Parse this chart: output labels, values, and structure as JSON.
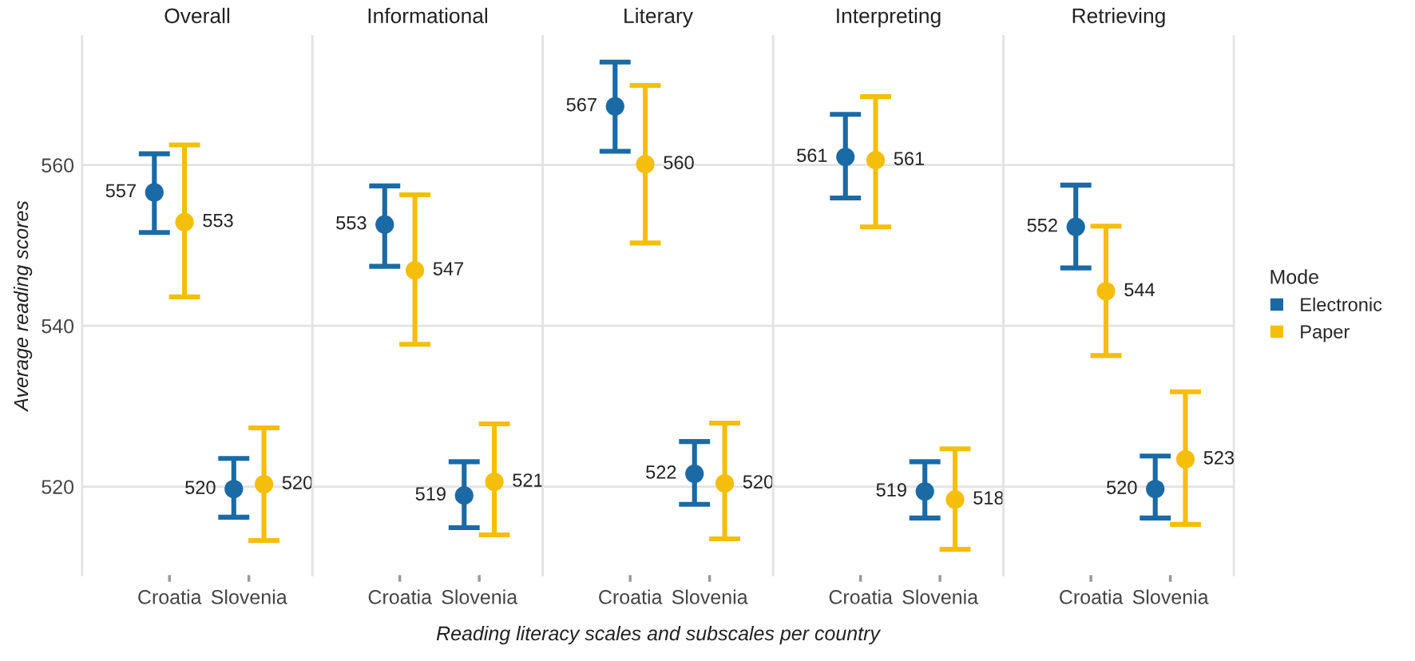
{
  "chart_data": [
    {
      "type": "scatter",
      "title": "Overall",
      "ylabel": "Average reading scores",
      "categories": [
        "Croatia",
        "Slovenia"
      ],
      "ylim": [
        509,
        576
      ],
      "yticks": [
        520,
        540,
        560
      ],
      "grid": "y",
      "marker": "circle",
      "series": [
        {
          "color": "#1a6aa5",
          "values": [
            556.6,
            519.7
          ],
          "errors": [
            [
              551.6,
              561.4
            ],
            [
              516.2,
              523.5
            ]
          ],
          "value_labels": [
            "557",
            "520"
          ]
        },
        {
          "color": "#f5be0b",
          "values": [
            552.9,
            520.3
          ],
          "errors": [
            [
              543.6,
              562.5
            ],
            [
              513.3,
              527.3
            ]
          ],
          "value_labels": [
            "553",
            "520"
          ]
        }
      ]
    },
    {
      "type": "scatter",
      "title": "Informational",
      "categories": [
        "Croatia",
        "Slovenia"
      ],
      "ylim": [
        509,
        576
      ],
      "yticks": [
        520,
        540,
        560
      ],
      "tick_labels": "x",
      "grid": "y",
      "marker": "circle",
      "series": [
        {
          "color": "#1a6aa5",
          "values": [
            552.6,
            518.9
          ],
          "errors": [
            [
              547.4,
              557.4
            ],
            [
              514.9,
              523.1
            ]
          ],
          "value_labels": [
            "553",
            "519"
          ]
        },
        {
          "color": "#f5be0b",
          "values": [
            546.9,
            520.6
          ],
          "errors": [
            [
              537.7,
              556.3
            ],
            [
              514.0,
              527.8
            ]
          ],
          "value_labels": [
            "547",
            "521"
          ]
        }
      ]
    },
    {
      "type": "scatter",
      "title": "Literary",
      "xlabel": "Reading literacy scales and subscales per country",
      "categories": [
        "Croatia",
        "Slovenia"
      ],
      "ylim": [
        509,
        576
      ],
      "yticks": [
        520,
        540,
        560
      ],
      "tick_labels": "x",
      "grid": "y",
      "marker": "circle",
      "series": [
        {
          "color": "#1a6aa5",
          "values": [
            567.3,
            521.6
          ],
          "errors": [
            [
              561.7,
              572.8
            ],
            [
              517.8,
              525.6
            ]
          ],
          "value_labels": [
            "567",
            "522"
          ]
        },
        {
          "color": "#f5be0b",
          "values": [
            560.1,
            520.4
          ],
          "errors": [
            [
              550.3,
              569.9
            ],
            [
              513.5,
              527.9
            ]
          ],
          "value_labels": [
            "560",
            "520"
          ]
        }
      ]
    },
    {
      "type": "scatter",
      "title": "Interpreting",
      "categories": [
        "Croatia",
        "Slovenia"
      ],
      "ylim": [
        509,
        576
      ],
      "yticks": [
        520,
        540,
        560
      ],
      "tick_labels": "x",
      "grid": "y",
      "marker": "circle",
      "series": [
        {
          "color": "#1a6aa5",
          "values": [
            561.0,
            519.4
          ],
          "errors": [
            [
              555.9,
              566.3
            ],
            [
              516.1,
              523.1
            ]
          ],
          "value_labels": [
            "561",
            "519"
          ]
        },
        {
          "color": "#f5be0b",
          "values": [
            560.6,
            518.4
          ],
          "errors": [
            [
              552.3,
              568.5
            ],
            [
              512.2,
              524.7
            ]
          ],
          "value_labels": [
            "561",
            "518"
          ]
        }
      ]
    },
    {
      "type": "scatter",
      "title": "Retrieving",
      "categories": [
        "Croatia",
        "Slovenia"
      ],
      "ylim": [
        509,
        576
      ],
      "yticks": [
        520,
        540,
        560
      ],
      "tick_labels": "x",
      "grid": "y",
      "marker": "circle",
      "legend": "right",
      "legend_title": "Mode",
      "series": [
        {
          "name": "Electronic",
          "color": "#1a6aa5",
          "values": [
            552.3,
            519.7
          ],
          "errors": [
            [
              547.2,
              557.5
            ],
            [
              516.1,
              523.8
            ]
          ],
          "value_labels": [
            "552",
            "520"
          ]
        },
        {
          "name": "Paper",
          "color": "#f5be0b",
          "values": [
            544.3,
            523.4
          ],
          "errors": [
            [
              536.3,
              552.4
            ],
            [
              515.3,
              531.8
            ]
          ],
          "value_labels": [
            "544",
            "523"
          ]
        }
      ]
    }
  ]
}
